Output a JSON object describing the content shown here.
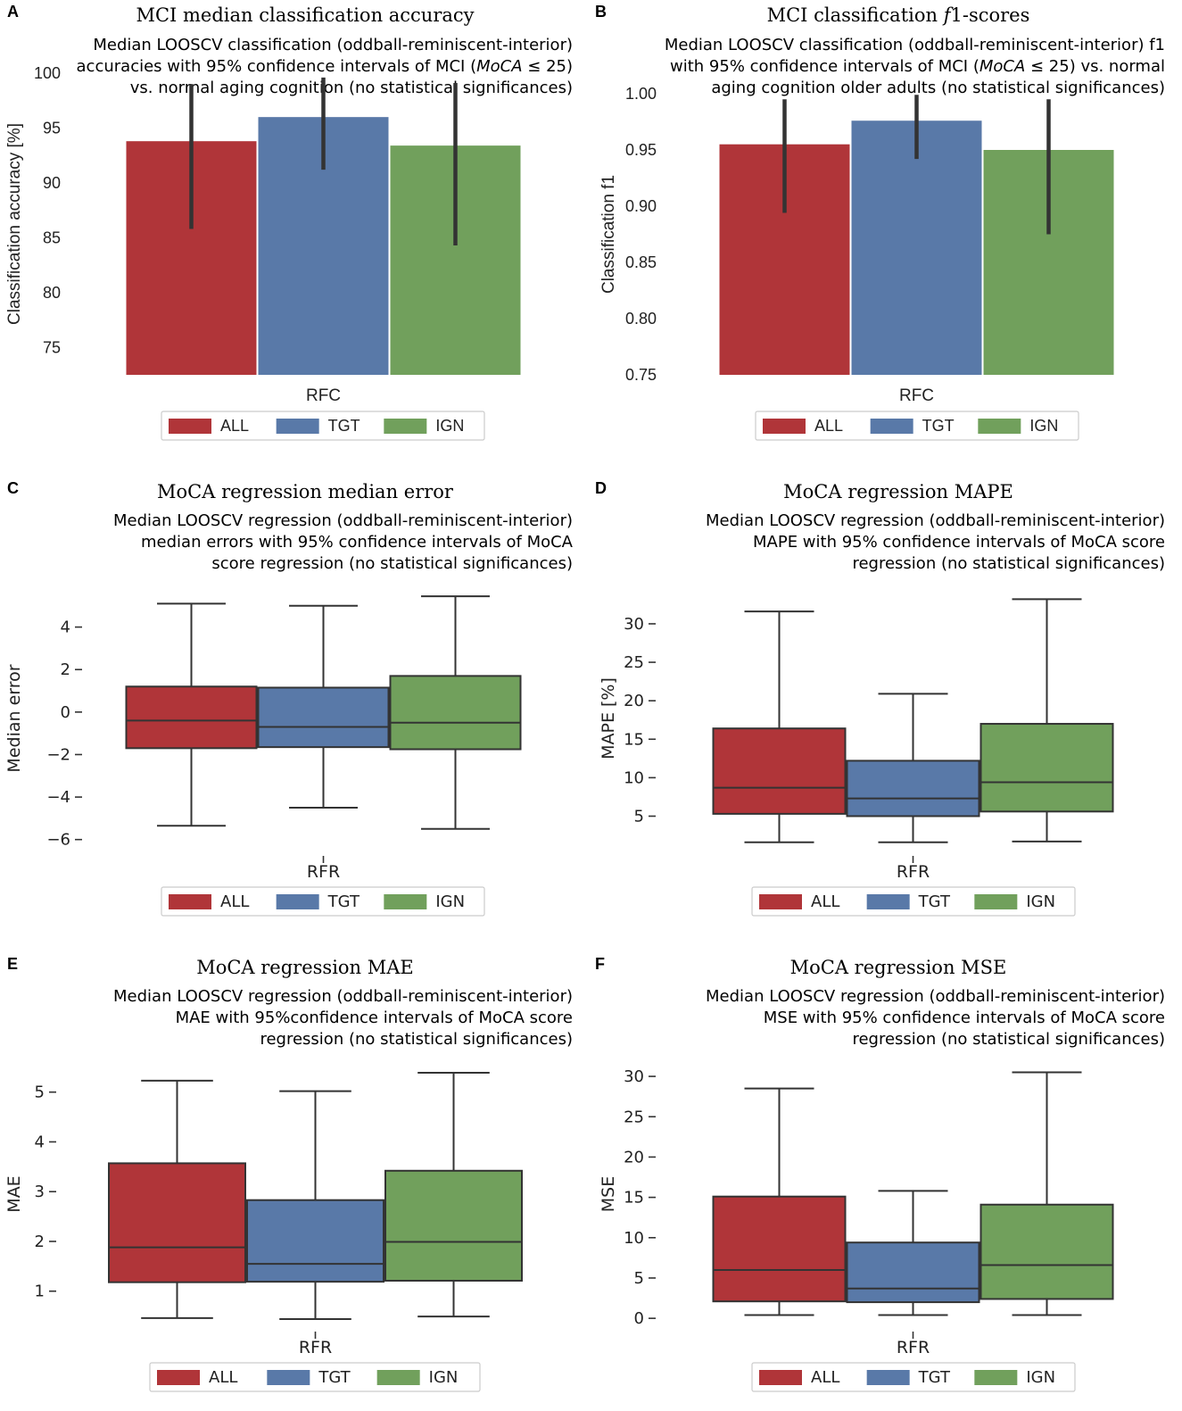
{
  "colors": {
    "ALL": "#b03539",
    "TGT": "#5979a8",
    "IGN": "#71a05c",
    "line": "#333333",
    "legend_border": "#cccccc"
  },
  "chart_data": [
    {
      "id": "A",
      "panel_label": "A",
      "type": "bar",
      "title": "MCI median classification accuracy",
      "subtitle_lines": [
        [
          "Median LOOSCV classification (oddball-reminiscent-interior)"
        ],
        [
          "accuracies with 95% confidence intervals of MCI (",
          {
            "i": "MoCA"
          },
          " ≤ 25)"
        ],
        [
          "vs. normal aging cognition (no statistical significances)"
        ]
      ],
      "xlabel": "RFC",
      "ylabel": "Classification accuracy [%]",
      "ylim": [
        72.5,
        100
      ],
      "yticks": [
        75,
        80,
        85,
        90,
        95,
        100
      ],
      "series": [
        {
          "name": "ALL",
          "value": 93.8,
          "ci": [
            85.8,
            99.0
          ]
        },
        {
          "name": "TGT",
          "value": 96.0,
          "ci": [
            91.2,
            99.6
          ]
        },
        {
          "name": "IGN",
          "value": 93.4,
          "ci": [
            84.3,
            99.1
          ]
        }
      ],
      "legend": [
        "ALL",
        "TGT",
        "IGN"
      ]
    },
    {
      "id": "B",
      "panel_label": "B",
      "type": "bar",
      "title_parts": [
        "MCI classification ",
        {
          "i": "f"
        },
        "1-scores"
      ],
      "subtitle_lines": [
        [
          "Median LOOSCV classification (oddball-reminiscent-interior) f1"
        ],
        [
          "with 95% confidence intervals of MCI (",
          {
            "i": "MoCA"
          },
          " ≤ 25) vs. normal"
        ],
        [
          "aging cognition older adults (no statistical significances)"
        ]
      ],
      "xlabel": "RFC",
      "ylabel": "Classification f1",
      "ylim": [
        0.75,
        1.0
      ],
      "yticks": [
        0.75,
        0.8,
        0.85,
        0.9,
        0.95,
        1.0
      ],
      "ytick_labels": [
        "0.75",
        "0.80",
        "0.85",
        "0.90",
        "0.95",
        "1.00"
      ],
      "series": [
        {
          "name": "ALL",
          "value": 0.955,
          "ci": [
            0.894,
            0.995
          ]
        },
        {
          "name": "TGT",
          "value": 0.976,
          "ci": [
            0.942,
            0.999
          ]
        },
        {
          "name": "IGN",
          "value": 0.95,
          "ci": [
            0.875,
            0.995
          ]
        }
      ],
      "legend": [
        "ALL",
        "TGT",
        "IGN"
      ]
    },
    {
      "id": "C",
      "panel_label": "C",
      "type": "box",
      "title": "MoCA regression median error",
      "subtitle_lines": [
        [
          "Median LOOSCV regression (oddball-reminiscent-interior)"
        ],
        [
          "median errors with 95% confidence intervals of MoCA"
        ],
        [
          "score regression (no statistical significances)"
        ]
      ],
      "xlabel": "RFR",
      "ylabel": "Median error",
      "ylim": [
        -6.6,
        6.0
      ],
      "yticks": [
        -6,
        -4,
        -2,
        0,
        2,
        4
      ],
      "ytick_labels": [
        "−6",
        "−4",
        "−2",
        "0",
        "2",
        "4"
      ],
      "series": [
        {
          "name": "ALL",
          "whislo": -5.35,
          "q1": -1.7,
          "med": -0.4,
          "q3": 1.2,
          "whishi": 5.1
        },
        {
          "name": "TGT",
          "whislo": -4.5,
          "q1": -1.65,
          "med": -0.7,
          "q3": 1.15,
          "whishi": 5.0
        },
        {
          "name": "IGN",
          "whislo": -5.5,
          "q1": -1.75,
          "med": -0.5,
          "q3": 1.7,
          "whishi": 5.45
        }
      ],
      "legend": [
        "ALL",
        "TGT",
        "IGN"
      ]
    },
    {
      "id": "D",
      "panel_label": "D",
      "type": "box",
      "title": "MoCA regression MAPE",
      "subtitle_lines": [
        [
          "Median LOOSCV regression (oddball-reminiscent-interior)"
        ],
        [
          "MAPE with 95% confidence intervals of MoCA score"
        ],
        [
          "regression (no statistical significances)"
        ]
      ],
      "xlabel": "RFR",
      "ylabel": "MAPE [%]",
      "ylim": [
        0.3,
        35.1
      ],
      "yticks": [
        5,
        10,
        15,
        20,
        25,
        30
      ],
      "series": [
        {
          "name": "ALL",
          "whislo": 1.6,
          "q1": 5.3,
          "med": 8.7,
          "q3": 16.4,
          "whishi": 31.6
        },
        {
          "name": "TGT",
          "whislo": 1.6,
          "q1": 5.0,
          "med": 7.3,
          "q3": 12.2,
          "whishi": 20.9
        },
        {
          "name": "IGN",
          "whislo": 1.7,
          "q1": 5.6,
          "med": 9.4,
          "q3": 17.0,
          "whishi": 33.2
        }
      ],
      "legend": [
        "ALL",
        "TGT",
        "IGN"
      ]
    },
    {
      "id": "E",
      "panel_label": "E",
      "type": "box",
      "title": "MoCA regression MAE",
      "subtitle_lines": [
        [
          "Median LOOSCV regression (oddball-reminiscent-interior)"
        ],
        [
          "MAE with 95%confidence intervals of MoCA score"
        ],
        [
          "regression (no statistical significances)"
        ]
      ],
      "xlabel": "RFR",
      "ylabel": "MAE",
      "ylim": [
        0.26,
        5.64
      ],
      "yticks": [
        1,
        2,
        3,
        4,
        5
      ],
      "series": [
        {
          "name": "ALL",
          "whislo": 0.46,
          "q1": 1.18,
          "med": 1.88,
          "q3": 3.57,
          "whishi": 5.23
        },
        {
          "name": "TGT",
          "whislo": 0.44,
          "q1": 1.19,
          "med": 1.55,
          "q3": 2.83,
          "whishi": 5.02
        },
        {
          "name": "IGN",
          "whislo": 0.49,
          "q1": 1.21,
          "med": 1.99,
          "q3": 3.42,
          "whishi": 5.39
        }
      ],
      "legend": [
        "ALL",
        "TGT",
        "IGN"
      ]
    },
    {
      "id": "F",
      "panel_label": "F",
      "type": "box",
      "title": "MoCA regression MSE",
      "subtitle_lines": [
        [
          "Median LOOSCV regression (oddball-reminiscent-interior)"
        ],
        [
          "MSE with 95% confidence intervals of MoCA score"
        ],
        [
          "regression (no statistical significances)"
        ]
      ],
      "xlabel": "RFR",
      "ylabel": "MSE",
      "ylim": [
        -1.2,
        32.0
      ],
      "yticks": [
        0,
        5,
        10,
        15,
        20,
        25,
        30
      ],
      "series": [
        {
          "name": "ALL",
          "whislo": 0.4,
          "q1": 2.1,
          "med": 6.0,
          "q3": 15.1,
          "whishi": 28.5
        },
        {
          "name": "TGT",
          "whislo": 0.4,
          "q1": 2.0,
          "med": 3.7,
          "q3": 9.4,
          "whishi": 15.8
        },
        {
          "name": "IGN",
          "whislo": 0.4,
          "q1": 2.4,
          "med": 6.6,
          "q3": 14.1,
          "whishi": 30.5
        }
      ],
      "legend": [
        "ALL",
        "TGT",
        "IGN"
      ]
    }
  ]
}
